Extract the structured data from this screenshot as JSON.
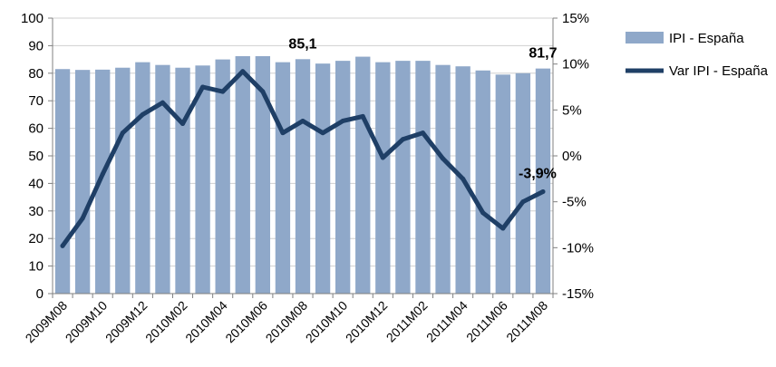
{
  "chart_data": {
    "type": "bar+line",
    "categories": [
      "2009M08",
      "2009M09",
      "2009M10",
      "2009M11",
      "2009M12",
      "2010M01",
      "2010M02",
      "2010M03",
      "2010M04",
      "2010M05",
      "2010M06",
      "2010M07",
      "2010M08",
      "2010M09",
      "2010M10",
      "2010M11",
      "2010M12",
      "2011M01",
      "2011M02",
      "2011M03",
      "2011M04",
      "2011M05",
      "2011M06",
      "2011M07",
      "2011M08"
    ],
    "x_tick_labels": [
      "2009M08",
      "2009M10",
      "2009M12",
      "2010M02",
      "2010M04",
      "2010M06",
      "2010M08",
      "2010M10",
      "2010M12",
      "2011M02",
      "2011M04",
      "2011M06",
      "2011M08"
    ],
    "series": [
      {
        "name": "IPI - España",
        "type": "bar",
        "axis": "left",
        "color": "#8fa8c9",
        "values": [
          81.5,
          81.2,
          81.3,
          82.0,
          84.0,
          83.0,
          82.0,
          82.8,
          85.0,
          86.2,
          86.2,
          84.0,
          85.1,
          83.5,
          84.5,
          86.0,
          84.0,
          84.5,
          84.5,
          83.0,
          82.5,
          81.0,
          79.5,
          80.0,
          81.7
        ]
      },
      {
        "name": "Var IPI - España",
        "type": "line",
        "axis": "right",
        "color": "#1f3f66",
        "values": [
          -9.8,
          -6.8,
          -2.0,
          2.5,
          4.5,
          5.8,
          3.5,
          7.5,
          7.0,
          9.2,
          7.0,
          2.5,
          3.8,
          2.5,
          3.8,
          4.3,
          -0.2,
          1.8,
          2.5,
          -0.3,
          -2.5,
          -6.2,
          -7.9,
          -5.0,
          -3.9
        ]
      }
    ],
    "left_axis": {
      "min": 0,
      "max": 100,
      "step": 10,
      "ticks": [
        "0",
        "10",
        "20",
        "30",
        "40",
        "50",
        "60",
        "70",
        "80",
        "90",
        "100"
      ]
    },
    "right_axis": {
      "min": -15,
      "max": 15,
      "step": 5,
      "ticks": [
        "-15%",
        "-10%",
        "-5%",
        "0%",
        "5%",
        "10%",
        "15%"
      ]
    },
    "data_labels": [
      {
        "category": "2010M08",
        "series": "IPI - España",
        "text": "85,1"
      },
      {
        "category": "2011M08",
        "series": "IPI - España",
        "text": "81,7"
      },
      {
        "category": "2011M08",
        "series": "Var IPI - España",
        "text": "-3,9%"
      }
    ],
    "grid": true,
    "legend": {
      "position": "right"
    },
    "title": "",
    "xlabel": "",
    "ylabel": ""
  }
}
